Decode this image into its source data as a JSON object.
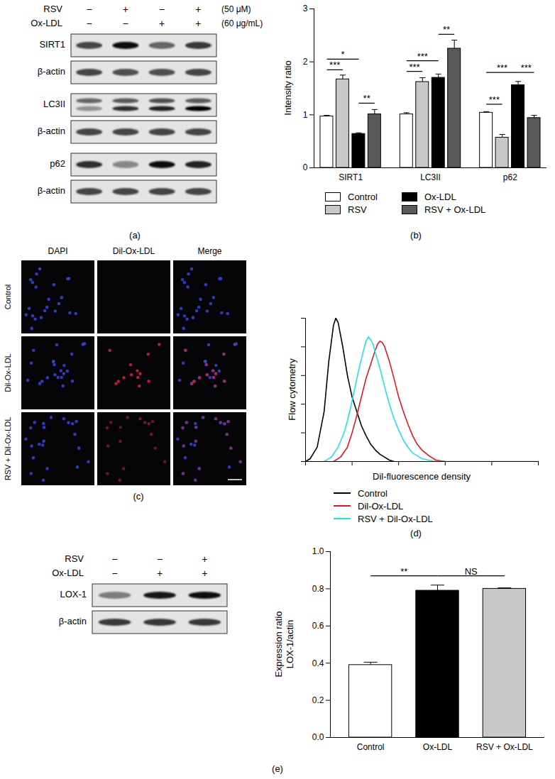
{
  "figure": {
    "a": {
      "panel_label": "(a)",
      "treatments": [
        {
          "name": "RSV",
          "signs": [
            "−",
            "+",
            "−",
            "+"
          ],
          "dose": "(50 μM)"
        },
        {
          "name": "Ox-LDL",
          "signs": [
            "−",
            "−",
            "+",
            "+"
          ],
          "dose": "(60 μg/mL)"
        }
      ],
      "rows": [
        {
          "label": "SIRT1",
          "bands": [
            0.7,
            0.95,
            0.55,
            0.75
          ]
        },
        {
          "label": "β-actin",
          "bands": [
            0.7,
            0.65,
            0.65,
            0.7
          ]
        },
        {
          "label": "LC3II",
          "bands": [
            [
              0.55,
              0.35
            ],
            [
              0.6,
              0.8
            ],
            [
              0.65,
              0.85
            ],
            [
              0.6,
              0.98
            ]
          ]
        },
        {
          "label": "β-actin",
          "bands": [
            0.7,
            0.7,
            0.7,
            0.7
          ]
        },
        {
          "label": "p62",
          "bands": [
            0.8,
            0.4,
            0.95,
            0.85
          ]
        },
        {
          "label": "β-actin",
          "bands": [
            0.7,
            0.7,
            0.7,
            0.7
          ]
        }
      ]
    },
    "c": {
      "panel_label": "(c)",
      "columns": [
        "DAPI",
        "Dil-Ox-LDL",
        "Merge"
      ],
      "rows": [
        "Control",
        "Dil-Ox-LDL",
        "RSV + Dil-Ox-LDL"
      ]
    },
    "e_blot": {
      "treatments": [
        {
          "name": "RSV",
          "signs": [
            "−",
            "−",
            "+"
          ]
        },
        {
          "name": "Ox-LDL",
          "signs": [
            "−",
            "+",
            "+"
          ]
        }
      ],
      "rows": [
        {
          "label": "LOX-1",
          "bands": [
            0.45,
            0.9,
            0.95
          ]
        },
        {
          "label": "β-actin",
          "bands": [
            0.75,
            0.75,
            0.75
          ]
        }
      ]
    }
  },
  "chart_data": [
    {
      "panel_label": "(b)",
      "type": "bar",
      "ylabel": "Intensity ratio",
      "categories": [
        "SIRT1",
        "LC3II",
        "p62"
      ],
      "series": [
        {
          "name": "Control",
          "color": "#ffffff",
          "values": [
            0.97,
            1.01,
            1.04
          ],
          "errors": [
            0.02,
            0.03,
            0.02
          ]
        },
        {
          "name": "RSV",
          "color": "#c8c8c8",
          "values": [
            1.67,
            1.62,
            0.57
          ],
          "errors": [
            0.08,
            0.08,
            0.06
          ]
        },
        {
          "name": "Ox-LDL",
          "color": "#000000",
          "values": [
            0.64,
            1.7,
            1.56
          ],
          "errors": [
            0.02,
            0.07,
            0.07
          ]
        },
        {
          "name": "RSV + Ox-LDL",
          "color": "#595959",
          "values": [
            1.01,
            2.25,
            0.94
          ],
          "errors": [
            0.09,
            0.16,
            0.05
          ]
        }
      ],
      "ylim": [
        0,
        3
      ],
      "yticks": [
        0,
        1,
        2,
        3
      ],
      "legend": "bottom",
      "significance": [
        {
          "category": "SIRT1",
          "from": "Control",
          "to": "RSV",
          "y": 1.85,
          "label": "***"
        },
        {
          "category": "SIRT1",
          "from": "Control",
          "to": "Ox-LDL",
          "y": 2.05,
          "label": "*"
        },
        {
          "category": "SIRT1",
          "from": "Ox-LDL",
          "to": "RSV + Ox-LDL",
          "y": 1.22,
          "label": "**"
        },
        {
          "category": "LC3II",
          "from": "Control",
          "to": "RSV",
          "y": 1.82,
          "label": "***"
        },
        {
          "category": "LC3II",
          "from": "Control",
          "to": "Ox-LDL",
          "y": 2.02,
          "label": "***"
        },
        {
          "category": "LC3II",
          "from": "Ox-LDL",
          "to": "RSV + Ox-LDL",
          "y": 2.52,
          "label": "**"
        },
        {
          "category": "p62",
          "from": "Control",
          "to": "Ox-LDL",
          "y": 1.8,
          "label": "***"
        },
        {
          "category": "p62",
          "from": "Ox-LDL",
          "to": "RSV + Ox-LDL",
          "y": 1.8,
          "label": "***"
        },
        {
          "category": "p62",
          "from": "Control",
          "to": "RSV",
          "y": 1.2,
          "label": "***"
        }
      ]
    },
    {
      "panel_label": "(d)",
      "type": "line",
      "ylabel": "Flow cytometry",
      "xlabel": "Dil-fluorescence density",
      "tick_labels": false,
      "xlim": [
        0,
        100
      ],
      "ylim": [
        0,
        100
      ],
      "xticks": [
        0,
        20,
        40,
        60,
        80,
        100
      ],
      "yticks": [
        0,
        20,
        40,
        60,
        80,
        100
      ],
      "legend": "bottom",
      "series": [
        {
          "name": "Control",
          "color": "#000000",
          "x": [
            0,
            2,
            5,
            8,
            10,
            12,
            13,
            14,
            16,
            18,
            20,
            22,
            24,
            26,
            28,
            30,
            32,
            34,
            36,
            38
          ],
          "values": [
            0,
            2,
            10,
            35,
            70,
            95,
            100,
            97,
            80,
            60,
            45,
            35,
            25,
            18,
            12,
            8,
            5,
            3,
            1,
            0
          ]
        },
        {
          "name": "Dil-Ox-LDL",
          "color": "#e8141c",
          "x": [
            12,
            15,
            18,
            20,
            22,
            24,
            26,
            28,
            30,
            31,
            32,
            33,
            34,
            36,
            38,
            40,
            42,
            44,
            46,
            48,
            50,
            53,
            56,
            60
          ],
          "values": [
            0,
            3,
            10,
            20,
            32,
            45,
            58,
            68,
            78,
            82,
            84,
            83,
            80,
            70,
            58,
            45,
            35,
            26,
            18,
            12,
            8,
            4,
            1,
            0
          ]
        },
        {
          "name": "RSV + Dil-Ox-LDL",
          "color": "#22e0ee",
          "x": [
            8,
            11,
            14,
            17,
            19,
            21,
            23,
            25,
            26,
            27,
            28,
            29,
            30,
            32,
            34,
            36,
            38,
            40,
            42,
            44,
            46,
            48,
            50,
            53,
            56,
            100
          ],
          "values": [
            0,
            3,
            10,
            22,
            35,
            50,
            65,
            78,
            84,
            87,
            85,
            82,
            76,
            65,
            52,
            40,
            30,
            22,
            15,
            10,
            6,
            4,
            2,
            1,
            0,
            0
          ]
        }
      ]
    },
    {
      "panel_label": "(e)",
      "type": "bar",
      "ylabel": "Expression ratio\nLOX-1/actin",
      "categories": [
        "Control",
        "Ox-LDL",
        "RSV + Ox-LDL"
      ],
      "values": [
        0.39,
        0.79,
        0.8
      ],
      "errors": [
        0.015,
        0.03,
        0.005
      ],
      "colors": [
        "#ffffff",
        "#000000",
        "#c8c8c8"
      ],
      "ylim": [
        0,
        1.0
      ],
      "yticks": [
        {
          "value": 0,
          "label": "0.0"
        },
        0.2,
        0.4,
        0.6,
        0.8,
        {
          "value": 1.0,
          "label": "1.0"
        }
      ],
      "significance": [
        {
          "from": "Control",
          "to": "Ox-LDL",
          "y": 0.87,
          "label": "**"
        },
        {
          "from": "Ox-LDL",
          "to": "RSV + Ox-LDL",
          "y": 0.87,
          "label": "NS"
        }
      ]
    }
  ]
}
